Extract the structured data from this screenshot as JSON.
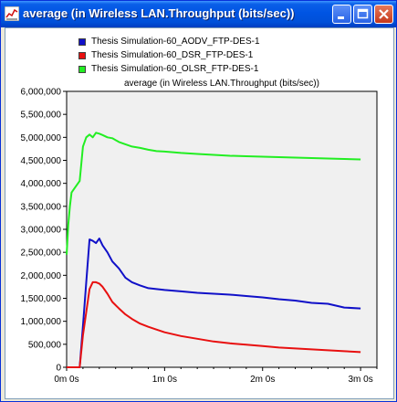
{
  "window": {
    "title": "average (in Wireless LAN.Throughput (bits/sec))",
    "icon": "chart-app-icon",
    "buttons": [
      "minimize-icon",
      "maximize-icon",
      "close-icon"
    ]
  },
  "colors": {
    "titlebar": "#0054e3",
    "plot_background": "#f0f0f0",
    "aodv": "#1010c8",
    "dsr": "#e81010",
    "olsr": "#22ee22"
  },
  "chart_data": {
    "type": "line",
    "title": "average (in Wireless LAN.Throughput (bits/sec))",
    "xlabel": "",
    "ylabel": "",
    "xlim_seconds": [
      0,
      190
    ],
    "ylim": [
      0,
      6000000
    ],
    "grid": false,
    "legend_position": "top",
    "yticks": [
      0,
      500000,
      1000000,
      1500000,
      2000000,
      2500000,
      3000000,
      3500000,
      4000000,
      4500000,
      5000000,
      5500000,
      6000000
    ],
    "ytick_labels": [
      "0",
      "500,000",
      "1,000,000",
      "1,500,000",
      "2,000,000",
      "2,500,000",
      "3,000,000",
      "3,500,000",
      "4,000,000",
      "4,500,000",
      "5,000,000",
      "5,500,000",
      "6,000,000"
    ],
    "xticks_seconds": [
      0,
      60,
      120,
      180
    ],
    "xtick_labels": [
      "0m 0s",
      "1m 0s",
      "2m 0s",
      "3m 0s"
    ],
    "series": [
      {
        "name": "Thesis Simulation-60_AODV_FTP-DES-1",
        "color": "#1010c8",
        "x": [
          0,
          5,
          8,
          10,
          12,
          14,
          16,
          18,
          20,
          22,
          25,
          28,
          32,
          36,
          40,
          45,
          50,
          55,
          60,
          70,
          80,
          90,
          100,
          110,
          120,
          130,
          140,
          150,
          160,
          170,
          180
        ],
        "y": [
          0,
          0,
          0,
          900000,
          1850000,
          2780000,
          2750000,
          2700000,
          2800000,
          2650000,
          2500000,
          2300000,
          2150000,
          1950000,
          1850000,
          1780000,
          1720000,
          1700000,
          1680000,
          1650000,
          1620000,
          1600000,
          1580000,
          1550000,
          1520000,
          1480000,
          1450000,
          1400000,
          1380000,
          1300000,
          1280000
        ]
      },
      {
        "name": "Thesis Simulation-60_DSR_FTP-DES-1",
        "color": "#e81010",
        "x": [
          0,
          5,
          8,
          10,
          12,
          14,
          16,
          18,
          20,
          22,
          25,
          28,
          32,
          36,
          40,
          45,
          50,
          55,
          60,
          70,
          80,
          90,
          100,
          110,
          120,
          130,
          140,
          150,
          160,
          170,
          180
        ],
        "y": [
          0,
          0,
          0,
          700000,
          1200000,
          1700000,
          1850000,
          1850000,
          1820000,
          1750000,
          1600000,
          1420000,
          1280000,
          1150000,
          1050000,
          950000,
          880000,
          820000,
          760000,
          680000,
          620000,
          560000,
          520000,
          490000,
          460000,
          430000,
          410000,
          390000,
          370000,
          350000,
          330000
        ]
      },
      {
        "name": "Thesis Simulation-60_OLSR_FTP-DES-1",
        "color": "#22ee22",
        "x": [
          0,
          1,
          2,
          3,
          5,
          8,
          10,
          12,
          14,
          16,
          18,
          20,
          22,
          25,
          28,
          32,
          36,
          40,
          45,
          50,
          55,
          60,
          70,
          80,
          90,
          100,
          110,
          120,
          130,
          140,
          150,
          160,
          170,
          180
        ],
        "y": [
          2450000,
          3100000,
          3500000,
          3800000,
          3900000,
          4050000,
          4800000,
          5000000,
          5060000,
          5000000,
          5100000,
          5080000,
          5050000,
          5000000,
          4980000,
          4900000,
          4850000,
          4800000,
          4770000,
          4730000,
          4700000,
          4690000,
          4660000,
          4640000,
          4620000,
          4600000,
          4590000,
          4580000,
          4570000,
          4560000,
          4550000,
          4540000,
          4530000,
          4520000
        ]
      }
    ]
  }
}
